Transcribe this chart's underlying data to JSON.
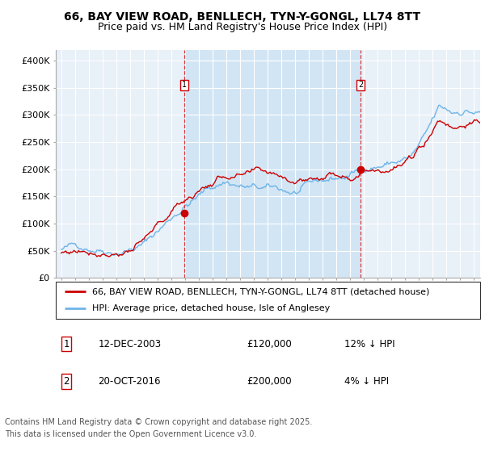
{
  "title": "66, BAY VIEW ROAD, BENLLECH, TYN-Y-GONGL, LL74 8TT",
  "subtitle": "Price paid vs. HM Land Registry's House Price Index (HPI)",
  "ylabel_ticks": [
    "£0",
    "£50K",
    "£100K",
    "£150K",
    "£200K",
    "£250K",
    "£300K",
    "£350K",
    "£400K"
  ],
  "ytick_values": [
    0,
    50000,
    100000,
    150000,
    200000,
    250000,
    300000,
    350000,
    400000
  ],
  "ylim": [
    0,
    420000
  ],
  "xlim_start": 1994.6,
  "xlim_end": 2025.5,
  "hpi_color": "#6EB4E8",
  "price_color": "#CC0000",
  "bg_color": "#E8F0F8",
  "shade_color": "#D0E4F4",
  "grid_color": "#FFFFFF",
  "marker1_year": 2003.958,
  "marker1_price": 120000,
  "marker2_year": 2016.792,
  "marker2_price": 200000,
  "legend_label1": "66, BAY VIEW ROAD, BENLLECH, TYN-Y-GONGL, LL74 8TT (detached house)",
  "legend_label2": "HPI: Average price, detached house, Isle of Anglesey",
  "table_row1_num": "1",
  "table_row1_date": "12-DEC-2003",
  "table_row1_price": "£120,000",
  "table_row1_hpi": "12% ↓ HPI",
  "table_row2_num": "2",
  "table_row2_date": "20-OCT-2016",
  "table_row2_price": "£200,000",
  "table_row2_hpi": "4% ↓ HPI",
  "footer_line1": "Contains HM Land Registry data © Crown copyright and database right 2025.",
  "footer_line2": "This data is licensed under the Open Government Licence v3.0.",
  "title_fontsize": 10,
  "subtitle_fontsize": 9,
  "tick_fontsize": 8,
  "legend_fontsize": 8,
  "table_fontsize": 8.5,
  "footer_fontsize": 7
}
